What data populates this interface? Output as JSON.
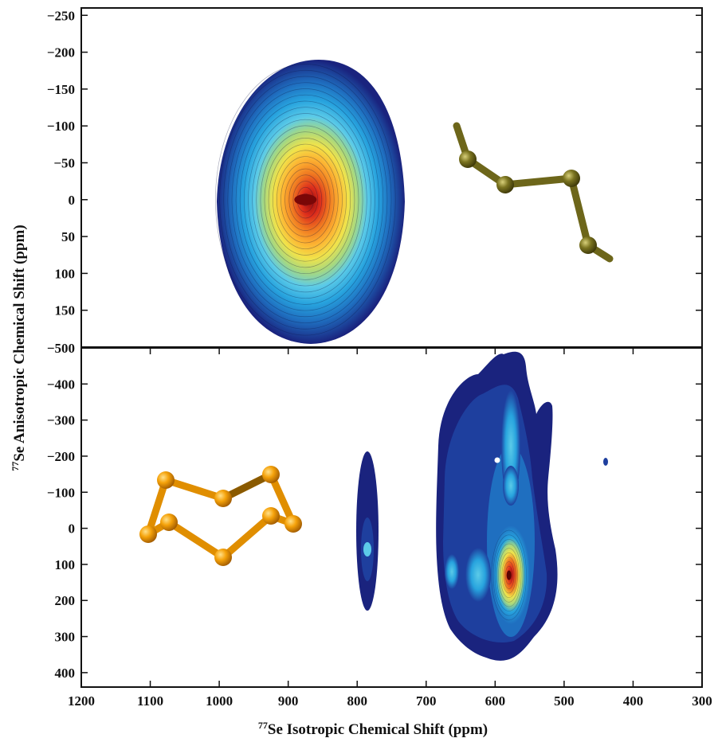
{
  "chart_data": [
    {
      "type": "contour",
      "panel": "top",
      "xlabel": "77Se Isotropic Chemical Shift (ppm)",
      "ylabel": "77Se Anisotropic Chemical Shift (ppm)",
      "xlim": [
        1200,
        300
      ],
      "ylim": [
        200,
        -260
      ],
      "y_ticks": [
        "−250",
        "−200",
        "−150",
        "−100",
        "−50",
        "0",
        "50",
        "100",
        "150"
      ],
      "peaks": [
        {
          "x": 875,
          "y": 0,
          "x_extent": [
            1005,
            735
          ],
          "y_extent": [
            -190,
            190
          ],
          "intensity": 1.0
        }
      ],
      "inset": {
        "type": "molecule",
        "description": "chain",
        "color": "#7b7420"
      }
    },
    {
      "type": "contour",
      "panel": "bottom",
      "xlim": [
        1200,
        300
      ],
      "ylim": [
        440,
        -500
      ],
      "x_ticks": [
        "1200",
        "1100",
        "1000",
        "900",
        "800",
        "700",
        "600",
        "500",
        "400",
        "300"
      ],
      "y_ticks": [
        "−500",
        "−400",
        "−300",
        "−200",
        "−100",
        "0",
        "100",
        "200",
        "300",
        "400"
      ],
      "peaks": [
        {
          "x": 783,
          "y": 60,
          "intensity": 0.35
        },
        {
          "x": 663,
          "y": 120,
          "intensity": 0.35
        },
        {
          "x": 622,
          "y": 130,
          "intensity": 0.45
        },
        {
          "x": 580,
          "y": 130,
          "intensity": 1.0
        },
        {
          "x": 580,
          "y": -120,
          "intensity": 0.4
        },
        {
          "x": 580,
          "y": -280,
          "intensity": 0.35
        },
        {
          "x": 440,
          "y": -190,
          "intensity": 0.1
        }
      ],
      "inset": {
        "type": "molecule",
        "description": "ring",
        "color": "#f5a20a"
      }
    }
  ],
  "colormap": [
    "#1a237e",
    "#1e3f9e",
    "#1f6fc0",
    "#27a3de",
    "#5ccbe8",
    "#a6d880",
    "#f1e34a",
    "#fdb332",
    "#f07a21",
    "#dd2e1c",
    "#9a0d0d"
  ]
}
